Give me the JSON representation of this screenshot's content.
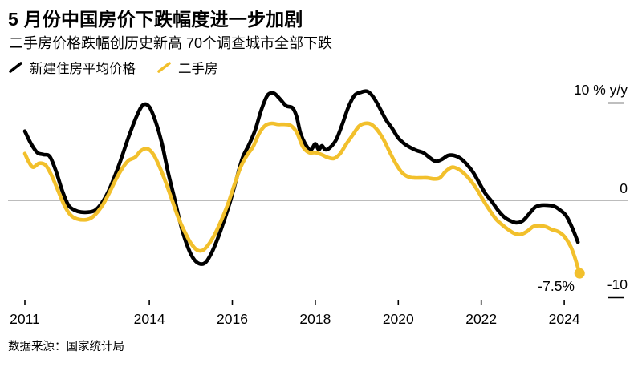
{
  "header": {
    "title": "5 月份中国房价下跌幅度进一步加剧",
    "subtitle": "二手房价格跌幅创历史新高 70个调查城市全部下跌"
  },
  "legend": {
    "items": [
      {
        "label": "新建住房平均价格",
        "color": "#000000"
      },
      {
        "label": "二手房",
        "color": "#F2C02C"
      }
    ]
  },
  "axis": {
    "y_top_label": "10 % y/y",
    "y_zero_label": "0",
    "y_bottom_label": "-10"
  },
  "annotation": {
    "last_value_label": "-7.5%"
  },
  "footer": {
    "source": "数据来源：国家统计局"
  },
  "chart_data": {
    "type": "line",
    "title": "5 月份中国房价下跌幅度进一步加剧",
    "subtitle": "二手房价格跌幅创历史新高 70个调查城市全部下跌",
    "ylabel": "% y/y",
    "ylim": [
      -10,
      10
    ],
    "y_ticks": [
      10,
      0,
      -10
    ],
    "x_ticks": [
      2011,
      2014,
      2016,
      2018,
      2020,
      2022,
      2024
    ],
    "x_range": [
      2010.9,
      2024.6
    ],
    "grid": "zero-line-only",
    "legend_position": "top-left",
    "zero_line_color": "#7a7a7a",
    "series": [
      {
        "name": "新建住房平均价格",
        "color": "#000000",
        "end_dot": false,
        "points": [
          [
            2011.0,
            7.1
          ],
          [
            2011.15,
            5.8
          ],
          [
            2011.3,
            4.9
          ],
          [
            2011.45,
            4.7
          ],
          [
            2011.6,
            4.5
          ],
          [
            2011.75,
            3.0
          ],
          [
            2011.9,
            1.0
          ],
          [
            2012.05,
            -0.5
          ],
          [
            2012.2,
            -1.0
          ],
          [
            2012.35,
            -1.2
          ],
          [
            2012.55,
            -1.2
          ],
          [
            2012.7,
            -1.0
          ],
          [
            2012.85,
            -0.3
          ],
          [
            2013.0,
            0.8
          ],
          [
            2013.15,
            2.3
          ],
          [
            2013.3,
            4.0
          ],
          [
            2013.5,
            6.5
          ],
          [
            2013.7,
            8.7
          ],
          [
            2013.85,
            9.8
          ],
          [
            2014.0,
            9.6
          ],
          [
            2014.15,
            8.1
          ],
          [
            2014.3,
            5.9
          ],
          [
            2014.45,
            2.9
          ],
          [
            2014.6,
            0.3
          ],
          [
            2014.75,
            -2.4
          ],
          [
            2014.9,
            -4.5
          ],
          [
            2015.05,
            -5.9
          ],
          [
            2015.2,
            -6.5
          ],
          [
            2015.35,
            -6.4
          ],
          [
            2015.5,
            -5.4
          ],
          [
            2015.65,
            -3.9
          ],
          [
            2015.8,
            -2.1
          ],
          [
            2015.95,
            -0.1
          ],
          [
            2016.1,
            2.2
          ],
          [
            2016.25,
            4.4
          ],
          [
            2016.4,
            5.7
          ],
          [
            2016.55,
            7.2
          ],
          [
            2016.7,
            9.3
          ],
          [
            2016.85,
            10.8
          ],
          [
            2017.0,
            11.0
          ],
          [
            2017.15,
            10.4
          ],
          [
            2017.3,
            9.7
          ],
          [
            2017.45,
            9.5
          ],
          [
            2017.55,
            8.6
          ],
          [
            2017.65,
            6.8
          ],
          [
            2017.8,
            5.5
          ],
          [
            2017.9,
            5.2
          ],
          [
            2018.0,
            5.8
          ],
          [
            2018.08,
            5.2
          ],
          [
            2018.16,
            5.6
          ],
          [
            2018.24,
            5.2
          ],
          [
            2018.35,
            5.4
          ],
          [
            2018.5,
            6.2
          ],
          [
            2018.65,
            7.8
          ],
          [
            2018.8,
            9.6
          ],
          [
            2018.95,
            10.8
          ],
          [
            2019.1,
            11.1
          ],
          [
            2019.25,
            11.2
          ],
          [
            2019.4,
            10.6
          ],
          [
            2019.55,
            9.5
          ],
          [
            2019.7,
            8.3
          ],
          [
            2019.85,
            7.4
          ],
          [
            2020.0,
            6.4
          ],
          [
            2020.15,
            5.8
          ],
          [
            2020.3,
            5.4
          ],
          [
            2020.45,
            5.1
          ],
          [
            2020.6,
            4.9
          ],
          [
            2020.75,
            4.4
          ],
          [
            2020.9,
            4.0
          ],
          [
            2021.05,
            4.2
          ],
          [
            2021.2,
            4.6
          ],
          [
            2021.35,
            4.6
          ],
          [
            2021.5,
            4.3
          ],
          [
            2021.65,
            3.7
          ],
          [
            2021.8,
            2.9
          ],
          [
            2021.95,
            1.8
          ],
          [
            2022.1,
            0.7
          ],
          [
            2022.25,
            -0.1
          ],
          [
            2022.4,
            -1.0
          ],
          [
            2022.55,
            -1.7
          ],
          [
            2022.7,
            -2.1
          ],
          [
            2022.85,
            -2.3
          ],
          [
            2023.0,
            -2.1
          ],
          [
            2023.15,
            -1.4
          ],
          [
            2023.3,
            -0.7
          ],
          [
            2023.45,
            -0.5
          ],
          [
            2023.6,
            -0.5
          ],
          [
            2023.75,
            -0.6
          ],
          [
            2023.9,
            -1.0
          ],
          [
            2024.05,
            -1.6
          ],
          [
            2024.2,
            -2.9
          ],
          [
            2024.33,
            -4.3
          ]
        ]
      },
      {
        "name": "二手房",
        "color": "#F2C02C",
        "end_dot": true,
        "points": [
          [
            2011.0,
            4.8
          ],
          [
            2011.1,
            3.9
          ],
          [
            2011.2,
            3.4
          ],
          [
            2011.35,
            3.8
          ],
          [
            2011.5,
            3.6
          ],
          [
            2011.65,
            2.5
          ],
          [
            2011.8,
            1.0
          ],
          [
            2011.95,
            -0.5
          ],
          [
            2012.1,
            -1.5
          ],
          [
            2012.25,
            -1.9
          ],
          [
            2012.45,
            -2.0
          ],
          [
            2012.6,
            -1.8
          ],
          [
            2012.75,
            -1.2
          ],
          [
            2012.9,
            -0.3
          ],
          [
            2013.05,
            0.9
          ],
          [
            2013.2,
            2.2
          ],
          [
            2013.35,
            3.3
          ],
          [
            2013.5,
            4.1
          ],
          [
            2013.65,
            4.4
          ],
          [
            2013.8,
            5.1
          ],
          [
            2013.95,
            5.3
          ],
          [
            2014.1,
            4.7
          ],
          [
            2014.25,
            3.4
          ],
          [
            2014.4,
            1.8
          ],
          [
            2014.55,
            0.0
          ],
          [
            2014.7,
            -1.8
          ],
          [
            2014.85,
            -3.2
          ],
          [
            2015.0,
            -4.4
          ],
          [
            2015.15,
            -5.1
          ],
          [
            2015.3,
            -5.1
          ],
          [
            2015.45,
            -4.4
          ],
          [
            2015.6,
            -3.3
          ],
          [
            2015.75,
            -1.9
          ],
          [
            2015.9,
            -0.3
          ],
          [
            2016.05,
            1.6
          ],
          [
            2016.2,
            3.4
          ],
          [
            2016.35,
            4.6
          ],
          [
            2016.5,
            5.5
          ],
          [
            2016.65,
            6.9
          ],
          [
            2016.8,
            7.7
          ],
          [
            2016.95,
            7.9
          ],
          [
            2017.1,
            7.8
          ],
          [
            2017.25,
            7.8
          ],
          [
            2017.4,
            7.7
          ],
          [
            2017.55,
            7.0
          ],
          [
            2017.7,
            5.5
          ],
          [
            2017.85,
            4.9
          ],
          [
            2018.0,
            4.9
          ],
          [
            2018.15,
            4.7
          ],
          [
            2018.3,
            4.4
          ],
          [
            2018.45,
            4.3
          ],
          [
            2018.6,
            4.8
          ],
          [
            2018.75,
            5.8
          ],
          [
            2018.9,
            6.7
          ],
          [
            2019.05,
            7.6
          ],
          [
            2019.2,
            7.9
          ],
          [
            2019.35,
            7.8
          ],
          [
            2019.5,
            7.2
          ],
          [
            2019.65,
            6.2
          ],
          [
            2019.8,
            4.9
          ],
          [
            2019.95,
            3.7
          ],
          [
            2020.1,
            2.8
          ],
          [
            2020.25,
            2.4
          ],
          [
            2020.4,
            2.3
          ],
          [
            2020.55,
            2.3
          ],
          [
            2020.7,
            2.3
          ],
          [
            2020.85,
            2.2
          ],
          [
            2021.0,
            2.3
          ],
          [
            2021.15,
            3.0
          ],
          [
            2021.3,
            3.4
          ],
          [
            2021.45,
            3.2
          ],
          [
            2021.6,
            2.7
          ],
          [
            2021.75,
            2.0
          ],
          [
            2021.9,
            1.1
          ],
          [
            2022.05,
            0.0
          ],
          [
            2022.2,
            -1.0
          ],
          [
            2022.35,
            -1.9
          ],
          [
            2022.5,
            -2.5
          ],
          [
            2022.65,
            -3.0
          ],
          [
            2022.8,
            -3.4
          ],
          [
            2022.95,
            -3.5
          ],
          [
            2023.1,
            -3.2
          ],
          [
            2023.25,
            -2.7
          ],
          [
            2023.4,
            -2.6
          ],
          [
            2023.55,
            -2.7
          ],
          [
            2023.7,
            -3.0
          ],
          [
            2023.85,
            -3.2
          ],
          [
            2024.0,
            -3.7
          ],
          [
            2024.15,
            -4.7
          ],
          [
            2024.25,
            -5.8
          ],
          [
            2024.37,
            -7.5
          ]
        ]
      }
    ],
    "annotations": [
      {
        "x": 2024.37,
        "y": -7.5,
        "label": "-7.5%"
      }
    ]
  }
}
